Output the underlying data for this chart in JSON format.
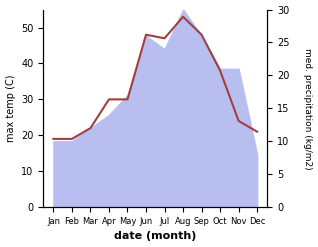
{
  "months": [
    "Jan",
    "Feb",
    "Mar",
    "Apr",
    "May",
    "Jun",
    "Jul",
    "Aug",
    "Sep",
    "Oct",
    "Nov",
    "Dec"
  ],
  "temp": [
    19,
    19,
    22,
    30,
    30,
    48,
    47,
    53,
    48,
    38,
    24,
    21
  ],
  "precip": [
    10,
    10,
    12,
    14,
    17,
    26,
    24,
    30,
    26,
    21,
    21,
    8
  ],
  "temp_color": "#a04040",
  "precip_fill_color": "#b8bff0",
  "ylabel_left": "max temp (C)",
  "ylabel_right": "med. precipitation (kg/m2)",
  "xlabel": "date (month)",
  "ylim_left": [
    0,
    55
  ],
  "ylim_right": [
    0,
    30
  ],
  "yticks_left": [
    0,
    10,
    20,
    30,
    40,
    50
  ],
  "yticks_right": [
    0,
    5,
    10,
    15,
    20,
    25,
    30
  ]
}
